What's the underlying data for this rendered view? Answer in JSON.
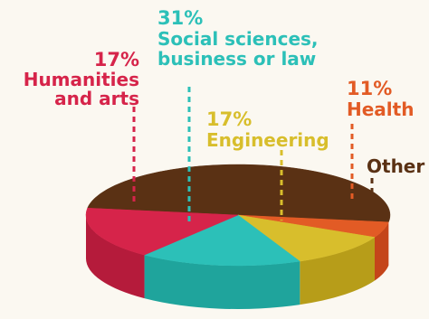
{
  "chart_data": {
    "type": "pie",
    "series": [
      {
        "key": "other",
        "label": "Other",
        "value": null,
        "value_label": "",
        "color": "#5a3114",
        "side_color": "#40210b"
      },
      {
        "key": "health",
        "label": "Health",
        "value": 11,
        "value_label": "11%",
        "color": "#e25b25",
        "side_color": "#c4451a"
      },
      {
        "key": "engineering",
        "label": "Engineering",
        "value": 17,
        "value_label": "17%",
        "color": "#d8be2c",
        "side_color": "#b79d19"
      },
      {
        "key": "social",
        "label": "Social sciences, business or law",
        "value": 31,
        "value_label": "31%",
        "color": "#2cc0b8",
        "side_color": "#1fa49c"
      },
      {
        "key": "humanities",
        "label": "Humanities and arts",
        "value": 17,
        "value_label": "17%",
        "color": "#d6244a",
        "side_color": "#b51b3b"
      }
    ],
    "labels": {
      "social_pct": "31%",
      "social_line1": "Social sciences,",
      "social_line2": "business or law",
      "humanities_pct": "17%",
      "humanities_line1": "Humanities",
      "humanities_line2": "and arts",
      "engineering_pct": "17%",
      "engineering_line1": "Engineering",
      "health_pct": "11%",
      "health_line1": "Health",
      "other_line1": "Other"
    },
    "title": "",
    "legend": "none"
  }
}
